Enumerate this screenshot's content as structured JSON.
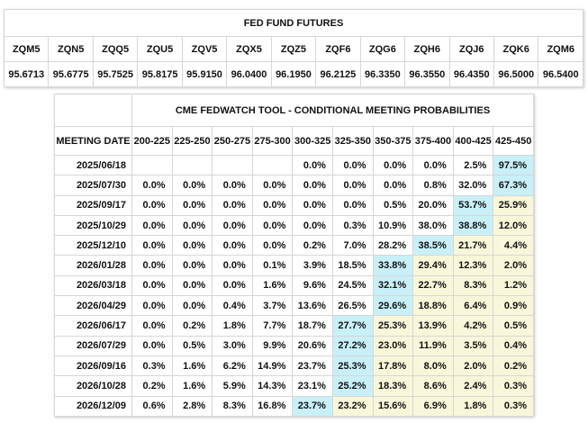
{
  "colors": {
    "highlight_blue": "#c9f0f8",
    "highlight_yellow": "#f8f7da",
    "border": "#d6d6d6",
    "text": "#111111"
  },
  "futures_table": {
    "title": "FED FUND FUTURES",
    "columns": [
      "ZQM5",
      "ZQN5",
      "ZQQ5",
      "ZQU5",
      "ZQV5",
      "ZQX5",
      "ZQZ5",
      "ZQF6",
      "ZQG6",
      "ZQH6",
      "ZQJ6",
      "ZQK6",
      "ZQM6"
    ],
    "values": [
      "95.6713",
      "95.6775",
      "95.7525",
      "95.8175",
      "95.9150",
      "96.0400",
      "96.1950",
      "96.2125",
      "96.3350",
      "96.3550",
      "96.4350",
      "96.5000",
      "96.5400"
    ]
  },
  "fedwatch_table": {
    "title": "CME FEDWATCH TOOL - CONDITIONAL MEETING PROBABILITIES",
    "date_header": "MEETING DATE",
    "range_headers": [
      "200-225",
      "225-250",
      "250-275",
      "275-300",
      "300-325",
      "325-350",
      "350-375",
      "375-400",
      "400-425",
      "425-450"
    ],
    "rows": [
      {
        "date": "2025/06/18",
        "cells": [
          "",
          "",
          "",
          "",
          "0.0%",
          "0.0%",
          "0.0%",
          "0.0%",
          "2.5%",
          "97.5%"
        ],
        "blue_index": 9
      },
      {
        "date": "2025/07/30",
        "cells": [
          "0.0%",
          "0.0%",
          "0.0%",
          "0.0%",
          "0.0%",
          "0.0%",
          "0.0%",
          "0.8%",
          "32.0%",
          "67.3%"
        ],
        "blue_index": 9
      },
      {
        "date": "2025/09/17",
        "cells": [
          "0.0%",
          "0.0%",
          "0.0%",
          "0.0%",
          "0.0%",
          "0.0%",
          "0.5%",
          "20.0%",
          "53.7%",
          "25.9%"
        ],
        "blue_index": 8
      },
      {
        "date": "2025/10/29",
        "cells": [
          "0.0%",
          "0.0%",
          "0.0%",
          "0.0%",
          "0.0%",
          "0.3%",
          "10.9%",
          "38.0%",
          "38.8%",
          "12.0%"
        ],
        "blue_index": 8
      },
      {
        "date": "2025/12/10",
        "cells": [
          "0.0%",
          "0.0%",
          "0.0%",
          "0.0%",
          "0.2%",
          "7.0%",
          "28.2%",
          "38.5%",
          "21.7%",
          "4.4%"
        ],
        "blue_index": 7
      },
      {
        "date": "2026/01/28",
        "cells": [
          "0.0%",
          "0.0%",
          "0.0%",
          "0.1%",
          "3.9%",
          "18.5%",
          "33.8%",
          "29.4%",
          "12.3%",
          "2.0%"
        ],
        "blue_index": 6
      },
      {
        "date": "2026/03/18",
        "cells": [
          "0.0%",
          "0.0%",
          "0.0%",
          "1.6%",
          "9.6%",
          "24.5%",
          "32.1%",
          "22.7%",
          "8.3%",
          "1.2%"
        ],
        "blue_index": 6
      },
      {
        "date": "2026/04/29",
        "cells": [
          "0.0%",
          "0.0%",
          "0.4%",
          "3.7%",
          "13.6%",
          "26.5%",
          "29.6%",
          "18.8%",
          "6.4%",
          "0.9%"
        ],
        "blue_index": 6
      },
      {
        "date": "2026/06/17",
        "cells": [
          "0.0%",
          "0.2%",
          "1.8%",
          "7.7%",
          "18.7%",
          "27.7%",
          "25.3%",
          "13.9%",
          "4.2%",
          "0.5%"
        ],
        "blue_index": 5
      },
      {
        "date": "2026/07/29",
        "cells": [
          "0.0%",
          "0.5%",
          "3.0%",
          "9.9%",
          "20.6%",
          "27.2%",
          "23.0%",
          "11.9%",
          "3.5%",
          "0.4%"
        ],
        "blue_index": 5
      },
      {
        "date": "2026/09/16",
        "cells": [
          "0.3%",
          "1.6%",
          "6.2%",
          "14.9%",
          "23.7%",
          "25.3%",
          "17.8%",
          "8.0%",
          "2.0%",
          "0.2%"
        ],
        "blue_index": 5
      },
      {
        "date": "2026/10/28",
        "cells": [
          "0.2%",
          "1.6%",
          "5.9%",
          "14.3%",
          "23.1%",
          "25.2%",
          "18.3%",
          "8.6%",
          "2.4%",
          "0.3%"
        ],
        "blue_index": 5
      },
      {
        "date": "2026/12/09",
        "cells": [
          "0.6%",
          "2.8%",
          "8.3%",
          "16.8%",
          "23.7%",
          "23.2%",
          "15.6%",
          "6.9%",
          "1.8%",
          "0.3%"
        ],
        "blue_index": 4
      }
    ]
  }
}
